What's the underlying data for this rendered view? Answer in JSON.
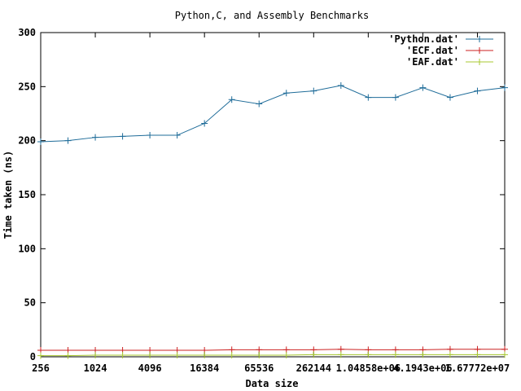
{
  "chart_data": {
    "type": "line",
    "title": "Python,C, and Assembly Benchmarks",
    "xlabel": "Data size",
    "ylabel": "Time taken (ns)",
    "ylim": [
      0,
      300
    ],
    "yticks": [
      0,
      50,
      100,
      150,
      200,
      250,
      300
    ],
    "x_ticks": [
      "256",
      "1024",
      "4096",
      "16384",
      "65536",
      "262144",
      "1.04858e+06",
      "4.1943e+06",
      "1.67772e+07"
    ],
    "x_tick_positions": [
      0,
      2,
      4,
      6,
      8,
      10,
      12,
      14,
      16
    ],
    "xlim": [
      0,
      17
    ],
    "grid": false,
    "legend_position": "top-right",
    "x": [
      0,
      1,
      2,
      3,
      4,
      5,
      6,
      7,
      8,
      9,
      10,
      11,
      12,
      13,
      14,
      15,
      16,
      17
    ],
    "series": [
      {
        "name": "'Python.dat'",
        "color": "#1f6c99",
        "values": [
          199,
          200,
          203,
          204,
          205,
          205,
          216,
          238,
          234,
          244,
          246,
          251,
          240,
          240,
          249,
          240,
          246,
          249
        ]
      },
      {
        "name": "'ECF.dat'",
        "color": "#cc2222",
        "values": [
          6,
          6,
          6,
          6,
          6,
          6,
          6,
          6.5,
          6.5,
          6.5,
          6.5,
          7,
          6.5,
          6.5,
          6.5,
          7,
          7,
          7
        ]
      },
      {
        "name": "'EAF.dat'",
        "color": "#a8c832",
        "values": [
          1,
          1,
          1.5,
          1.5,
          1.5,
          1.5,
          1.5,
          1.5,
          1.5,
          1.5,
          2,
          2,
          2,
          2,
          2,
          2,
          2,
          2
        ]
      }
    ]
  }
}
